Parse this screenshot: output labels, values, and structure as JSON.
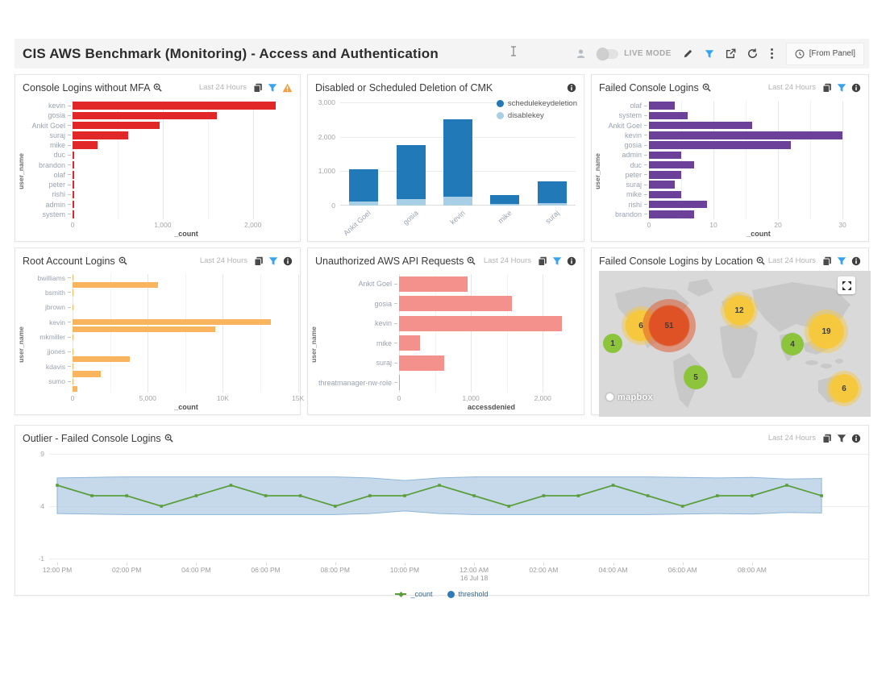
{
  "header": {
    "title": "CIS AWS Benchmark (Monitoring) - Access and Authentication",
    "live_mode_label": "LIVE MODE",
    "time_range_value": "[From Panel]"
  },
  "panels": {
    "mfa": {
      "title": "Console Logins without MFA",
      "time_range": "Last 24 Hours"
    },
    "cmk": {
      "title": "Disabled or Scheduled Deletion of CMK"
    },
    "failed": {
      "title": "Failed Console Logins",
      "time_range": "Last 24 Hours"
    },
    "root": {
      "title": "Root Account Logins",
      "time_range": "Last 24 Hours"
    },
    "unauth": {
      "title": "Unauthorized AWS API Requests",
      "time_range": "Last 24 Hours"
    },
    "geo": {
      "title": "Failed Console Logins by Location",
      "time_range": "Last 24 Hours",
      "attribution": "mapbox"
    },
    "outlier": {
      "title": "Outlier - Failed Console Logins",
      "time_range": "Last 24 Hours"
    }
  },
  "chart_data": [
    {
      "name": "console-logins-without-mfa",
      "type": "bar",
      "orientation": "horizontal",
      "color": "#e12727",
      "xlabel": "_count",
      "ylabel": "user_name",
      "xmax": 2450,
      "xticks": [
        {
          "v": 0,
          "label": "0"
        },
        {
          "v": 1000,
          "label": "1,000"
        },
        {
          "v": 2000,
          "label": "2,000"
        }
      ],
      "grid_minor": [
        500,
        1500
      ],
      "categories": [
        "kevin",
        "gosia",
        "Ankit Goel",
        "suraj",
        "mike",
        "duc",
        "brandon",
        "olaf",
        "peter",
        "rishi",
        "admin",
        "system"
      ],
      "values": [
        2250,
        1600,
        970,
        620,
        280,
        15,
        15,
        15,
        15,
        15,
        15,
        15
      ],
      "label_w": 62
    },
    {
      "name": "disabled-or-scheduled-deletion-of-cmk",
      "type": "bar",
      "orientation": "vertical",
      "stacked": true,
      "xlabel": "user_name",
      "ymax": 3000,
      "yticks": [
        {
          "v": 0,
          "label": "0"
        },
        {
          "v": 1000,
          "label": "1,000"
        },
        {
          "v": 2000,
          "label": "2,000"
        },
        {
          "v": 3000,
          "label": "3,000"
        }
      ],
      "categories": [
        "Ankit Goel",
        "gosia",
        "kevin",
        "mike",
        "suraj"
      ],
      "series": [
        {
          "name": "schedulekeydeletion",
          "color": "#2179b8",
          "values": [
            930,
            1570,
            2270,
            260,
            640
          ]
        },
        {
          "name": "disablekey",
          "color": "#a9cfe6",
          "values": [
            120,
            180,
            250,
            50,
            60
          ]
        }
      ]
    },
    {
      "name": "failed-console-logins",
      "type": "bar",
      "orientation": "horizontal",
      "color": "#6b4199",
      "xlabel": "_count",
      "ylabel": "user_name",
      "xmax": 33,
      "xticks": [
        {
          "v": 0,
          "label": "0"
        },
        {
          "v": 10,
          "label": "10"
        },
        {
          "v": 20,
          "label": "20"
        },
        {
          "v": 30,
          "label": "30"
        }
      ],
      "grid_minor": [
        5,
        15,
        25
      ],
      "categories": [
        "olaf",
        "system",
        "Ankit Goel",
        "kevin",
        "gosia",
        "admin",
        "duc",
        "peter",
        "suraj",
        "mike",
        "rishi",
        "brandon"
      ],
      "values": [
        4,
        6,
        16,
        30,
        22,
        5,
        7,
        5,
        4,
        5,
        9,
        7
      ],
      "label_w": 62
    },
    {
      "name": "root-account-logins",
      "type": "bar",
      "orientation": "horizontal",
      "color": "#f9b55d",
      "xlabel": "_count",
      "ylabel": "user_name",
      "xmax": 14700,
      "xticks": [
        {
          "v": 0,
          "label": "0"
        },
        {
          "v": 5000,
          "label": "5,000"
        },
        {
          "v": 10000,
          "label": "10K"
        },
        {
          "v": 15000,
          "label": "15K"
        }
      ],
      "grid_minor": [
        2500,
        7500,
        12500
      ],
      "categories": [
        "bwilliams",
        "",
        "bsmith",
        "",
        "jbrown",
        "",
        "kevin",
        "",
        "mkmiller",
        "",
        "jjones",
        "",
        "kdavis",
        "",
        "sumo",
        ""
      ],
      "values": [
        60,
        5700,
        60,
        0,
        60,
        0,
        13200,
        9500,
        60,
        0,
        60,
        3800,
        60,
        1900,
        60,
        300
      ],
      "label_w": 62
    },
    {
      "name": "unauthorized-aws-api-requests",
      "type": "bar",
      "orientation": "horizontal",
      "color": "#f5918c",
      "xlabel": "accessdenied",
      "ylabel": "user_name",
      "xmax": 2480,
      "xticks": [
        {
          "v": 0,
          "label": "0"
        },
        {
          "v": 1000,
          "label": "1,000"
        },
        {
          "v": 2000,
          "label": "2,000"
        }
      ],
      "grid_minor": [
        500,
        1500
      ],
      "categories": [
        "Ankit Goel",
        "gosia",
        "kevin",
        "mike",
        "suraj",
        "threatmanager-nw-role"
      ],
      "values": [
        950,
        1570,
        2270,
        290,
        630,
        15
      ],
      "label_w": 104
    },
    {
      "name": "failed-console-logins-by-location",
      "type": "map",
      "bubbles": [
        {
          "value": "1",
          "color": "green",
          "x": 17,
          "y": 90,
          "size": 24,
          "core": 80
        },
        {
          "value": "6",
          "color": "yellow",
          "x": 52,
          "y": 68,
          "size": 48,
          "core": 55
        },
        {
          "value": "51",
          "color": "red",
          "x": 87,
          "y": 68,
          "size": 66,
          "core": 52
        },
        {
          "value": "12",
          "color": "yellow",
          "x": 174,
          "y": 49,
          "size": 46,
          "core": 55
        },
        {
          "value": "4",
          "color": "green",
          "x": 240,
          "y": 91,
          "size": 28,
          "core": 78
        },
        {
          "value": "19",
          "color": "yellow",
          "x": 282,
          "y": 75,
          "size": 54,
          "core": 55
        },
        {
          "value": "5",
          "color": "green",
          "x": 120,
          "y": 132,
          "size": 30,
          "core": 74
        },
        {
          "value": "6",
          "color": "yellow",
          "x": 304,
          "y": 146,
          "size": 44,
          "core": 55
        }
      ],
      "bubble_colors": {
        "green": {
          "core": "#8cc43c",
          "halo": "rgba(140,196,60,0.45)"
        },
        "yellow": {
          "core": "#f6c83e",
          "halo": "rgba(246,200,62,0.45)"
        },
        "red": {
          "core": "#df5226",
          "halo": "rgba(223,82,38,0.5)"
        }
      }
    },
    {
      "name": "outlier-failed-console-logins",
      "type": "line",
      "ylim": [
        -1,
        9
      ],
      "yticks": [
        {
          "v": 9,
          "label": "9"
        },
        {
          "v": 4,
          "label": "4"
        },
        {
          "v": -1,
          "label": "-1"
        }
      ],
      "x_labels": [
        "12:00 PM",
        "02:00 PM",
        "04:00 PM",
        "06:00 PM",
        "08:00 PM",
        "10:00 PM",
        "12:00 AM",
        "02:00 AM",
        "04:00 AM",
        "06:00 AM",
        "08:00 AM"
      ],
      "x_sublabel": {
        "index": 6,
        "text": "16 Jul 18"
      },
      "line_color": "#5a9e3c",
      "band_fill": "rgba(177,204,228,0.75)",
      "band_edge": "#8fb6d9",
      "threshold_color": "#2e7bb5",
      "values": [
        6,
        5,
        5,
        4,
        5,
        6,
        5,
        5,
        4,
        5,
        5,
        6,
        5,
        4,
        5,
        5,
        6,
        5,
        4,
        5,
        5,
        6,
        5
      ],
      "band_upper": [
        6.7,
        6.75,
        6.8,
        6.8,
        6.8,
        6.8,
        6.8,
        6.8,
        6.8,
        6.7,
        6.45,
        6.7,
        6.8,
        6.8,
        6.8,
        6.8,
        6.8,
        6.8,
        6.75,
        6.7,
        6.75,
        6.6,
        6.65
      ],
      "band_lower": [
        3.3,
        3.25,
        3.2,
        3.2,
        3.2,
        3.2,
        3.2,
        3.2,
        3.2,
        3.3,
        3.55,
        3.3,
        3.2,
        3.2,
        3.2,
        3.2,
        3.2,
        3.2,
        3.25,
        3.3,
        3.25,
        3.4,
        3.35
      ],
      "legend": [
        {
          "name": "_count"
        },
        {
          "name": "threshold"
        }
      ]
    }
  ]
}
